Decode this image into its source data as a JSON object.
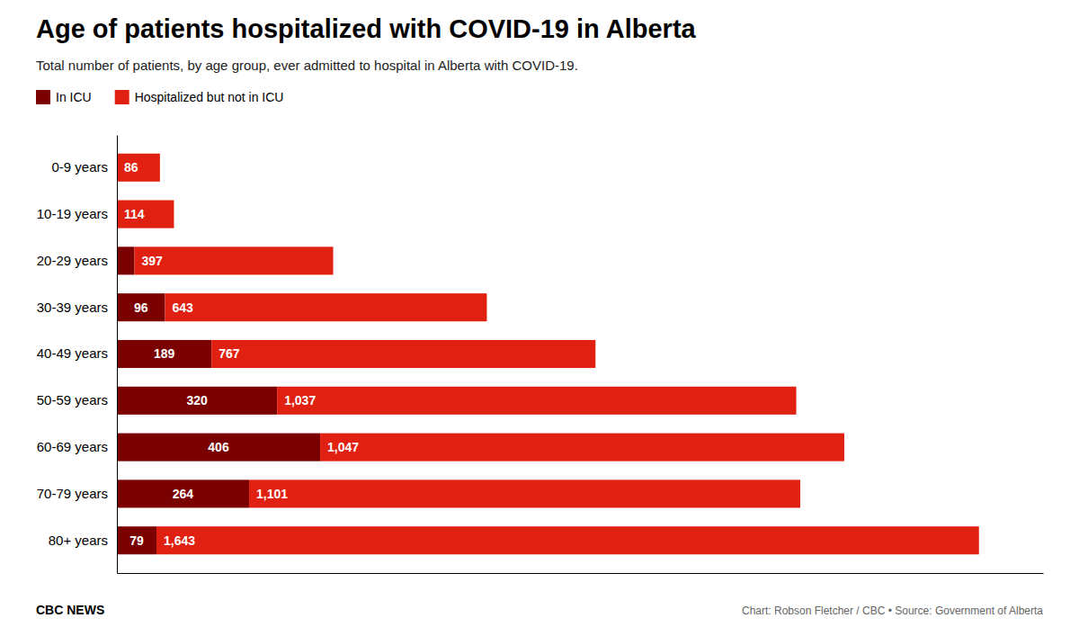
{
  "chart_data": {
    "type": "bar",
    "orientation": "horizontal",
    "stacked": true,
    "title": "Age of patients hospitalized with COVID-19 in Alberta",
    "subtitle": "Total number of patients, by age group, ever admitted to hospital in Alberta with COVID-19.",
    "categories": [
      "0-9 years",
      "10-19 years",
      "20-29 years",
      "30-39 years",
      "40-49 years",
      "50-59 years",
      "60-69 years",
      "70-79 years",
      "80+ years"
    ],
    "series": [
      {
        "name": "In ICU",
        "color": "#7b0000",
        "values": [
          0,
          0,
          35,
          96,
          189,
          320,
          406,
          264,
          79
        ],
        "value_labels": [
          null,
          null,
          null,
          "96",
          "189",
          "320",
          "406",
          "264",
          "79"
        ]
      },
      {
        "name": "Hospitalized but not in ICU",
        "color": "#e02010",
        "values": [
          86,
          114,
          397,
          643,
          767,
          1037,
          1047,
          1101,
          1643
        ],
        "value_labels": [
          "86",
          "114",
          "397",
          "643",
          "767",
          "1,037",
          "1,047",
          "1,101",
          "1,643"
        ]
      }
    ],
    "xlim": [
      0,
      1850
    ],
    "data_labels": true,
    "tick_labels": "y",
    "legend": "upper left",
    "annotations": [
      "CBC NEWS",
      "Chart: Robson Fletcher / CBC • Source: Government of Alberta"
    ]
  }
}
